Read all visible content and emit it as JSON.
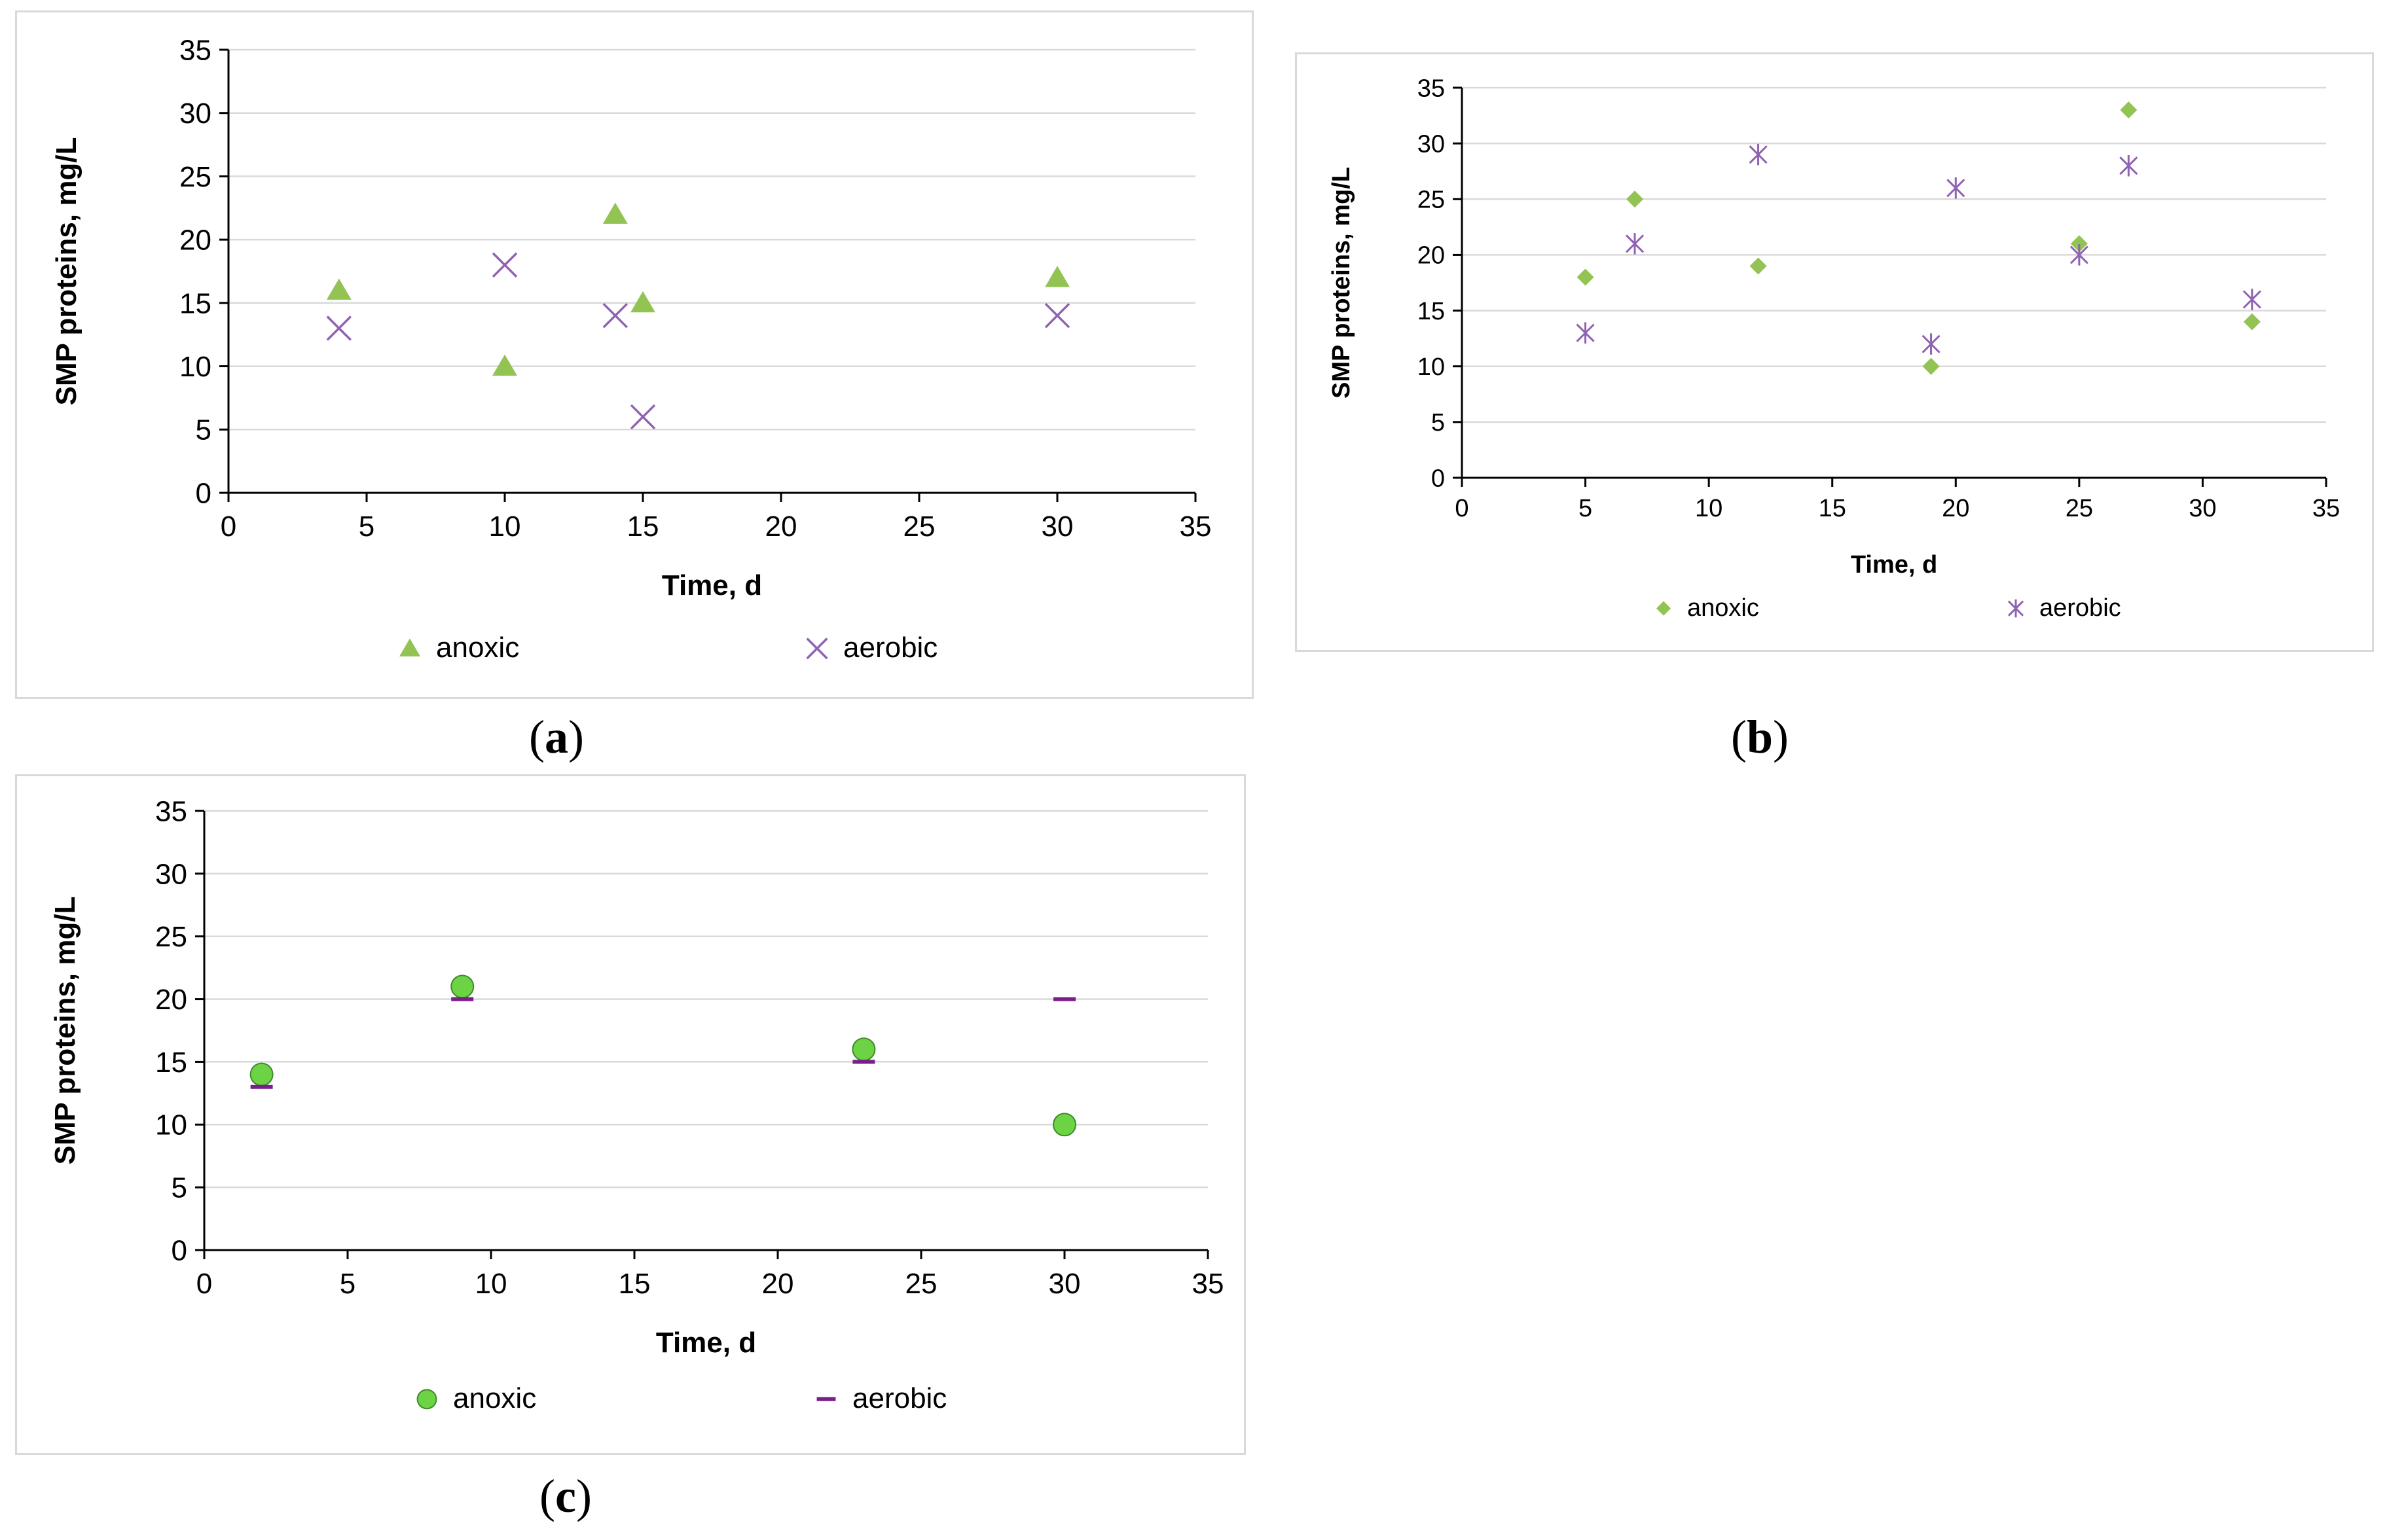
{
  "colors": {
    "anoxic": "#92c353",
    "anoxic_c": "#6cd344",
    "aerobic": "#8f62b2",
    "aerobic_c": "#7a1f8a",
    "grid": "#d9d9d9",
    "axis": "#000000"
  },
  "captions": {
    "a": "a",
    "b": "b",
    "c": "c"
  },
  "chart_data": [
    {
      "panel": "a",
      "type": "scatter",
      "xlabel": "Time, d",
      "ylabel": "SMP proteins, mg/L",
      "xlim": [
        0,
        35
      ],
      "ylim": [
        0,
        35
      ],
      "xticks": [
        0,
        5,
        10,
        15,
        20,
        25,
        30,
        35
      ],
      "yticks": [
        0,
        5,
        10,
        15,
        20,
        25,
        30,
        35
      ],
      "grid": "horizontal",
      "legend_position": "bottom",
      "series": [
        {
          "name": "anoxic",
          "marker": "triangle",
          "x": [
            4,
            10,
            14,
            15,
            30
          ],
          "y": [
            16,
            10,
            22,
            15,
            17
          ]
        },
        {
          "name": "aerobic",
          "marker": "x",
          "x": [
            4,
            10,
            14,
            15,
            30
          ],
          "y": [
            13,
            18,
            14,
            6,
            14
          ]
        }
      ]
    },
    {
      "panel": "b",
      "type": "scatter",
      "xlabel": "Time, d",
      "ylabel": "SMP proteins, mg/L",
      "xlim": [
        0,
        35
      ],
      "ylim": [
        0,
        35
      ],
      "xticks": [
        0,
        5,
        10,
        15,
        20,
        25,
        30,
        35
      ],
      "yticks": [
        0,
        5,
        10,
        15,
        20,
        25,
        30,
        35
      ],
      "grid": "horizontal",
      "legend_position": "bottom",
      "series": [
        {
          "name": "anoxic",
          "marker": "diamond",
          "x": [
            5,
            7,
            12,
            19,
            25,
            27,
            32
          ],
          "y": [
            18,
            25,
            19,
            10,
            21,
            33,
            14
          ]
        },
        {
          "name": "aerobic",
          "marker": "asterisk",
          "x": [
            5,
            7,
            12,
            19,
            20,
            25,
            27,
            32
          ],
          "y": [
            13,
            21,
            29,
            12,
            26,
            20,
            28,
            16
          ]
        }
      ]
    },
    {
      "panel": "c",
      "type": "scatter",
      "xlabel": "Time, d",
      "ylabel": "SMP proteins, mg/L",
      "xlim": [
        0,
        35
      ],
      "ylim": [
        0,
        35
      ],
      "xticks": [
        0,
        5,
        10,
        15,
        20,
        25,
        30,
        35
      ],
      "yticks": [
        0,
        5,
        10,
        15,
        20,
        25,
        30,
        35
      ],
      "grid": "horizontal",
      "legend_position": "bottom",
      "series": [
        {
          "name": "anoxic",
          "marker": "circle",
          "x": [
            2,
            9,
            23,
            30
          ],
          "y": [
            14,
            21,
            16,
            10
          ]
        },
        {
          "name": "aerobic",
          "marker": "dash",
          "x": [
            2,
            9,
            23,
            30
          ],
          "y": [
            13,
            20,
            15,
            20
          ]
        }
      ]
    }
  ]
}
